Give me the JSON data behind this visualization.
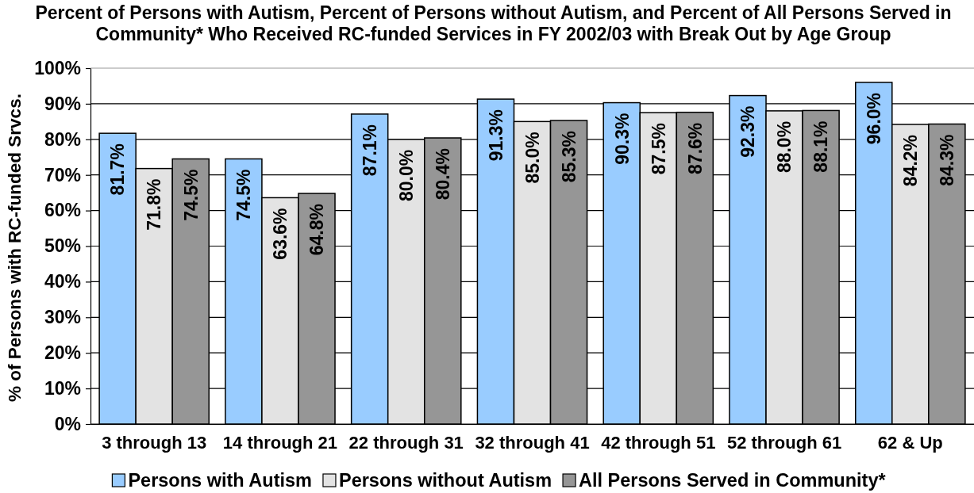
{
  "chart_data": {
    "type": "bar",
    "title": "Percent of Persons with Autism, Percent of Persons without Autism, and Percent of All Persons Served in Community* Who Received RC-funded Services in FY 2002/03 with Break Out by Age Group",
    "ylabel": "% of Persons with RC-funded Srvcs.",
    "categories": [
      "3 through 13",
      "14 through 21",
      "22 through 31",
      "32 through 41",
      "42 through 51",
      "52 through 61",
      "62 & Up"
    ],
    "series": [
      {
        "name": "Persons with Autism",
        "color": "#99ccff",
        "values": [
          81.7,
          74.5,
          87.1,
          91.3,
          90.3,
          92.3,
          96.0
        ],
        "value_labels": [
          "81.7%",
          "74.5%",
          "87.1%",
          "91.3%",
          "90.3%",
          "92.3%",
          "96.0%"
        ]
      },
      {
        "name": "Persons without Autism",
        "color": "#e3e3e3",
        "values": [
          71.8,
          63.6,
          80.0,
          85.0,
          87.5,
          88.0,
          84.2
        ],
        "value_labels": [
          "71.8%",
          "63.6%",
          "80.0%",
          "85.0%",
          "87.5%",
          "88.0%",
          "84.2%"
        ]
      },
      {
        "name": "All Persons Served in Community*",
        "color": "#969696",
        "values": [
          74.5,
          64.8,
          80.4,
          85.3,
          87.6,
          88.1,
          84.3
        ],
        "value_labels": [
          "74.5%",
          "64.8%",
          "80.4%",
          "85.3%",
          "87.6%",
          "88.1%",
          "84.3%"
        ]
      }
    ],
    "ylim": [
      0,
      100
    ],
    "yticks": [
      {
        "value": 0,
        "label": "0%"
      },
      {
        "value": 10,
        "label": "10%"
      },
      {
        "value": 20,
        "label": "20%"
      },
      {
        "value": 30,
        "label": "30%"
      },
      {
        "value": 40,
        "label": "40%"
      },
      {
        "value": 50,
        "label": "50%"
      },
      {
        "value": 60,
        "label": "60%"
      },
      {
        "value": 70,
        "label": "70%"
      },
      {
        "value": 80,
        "label": "80%"
      },
      {
        "value": 90,
        "label": "90%"
      },
      {
        "value": 100,
        "label": "100%"
      }
    ],
    "grid": "y",
    "legend": "bottom"
  }
}
